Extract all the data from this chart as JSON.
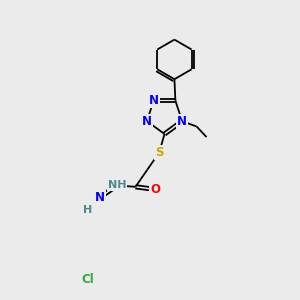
{
  "background_color": "#ebebeb",
  "atom_colors": {
    "N": "#0000ff",
    "S": "#ccaa00",
    "O": "#ff0000",
    "Cl": "#33aa33",
    "C": "#000000",
    "H": "#4a8a8a"
  },
  "lw": 1.3,
  "dbo": 6.0,
  "font_size": 8.5
}
